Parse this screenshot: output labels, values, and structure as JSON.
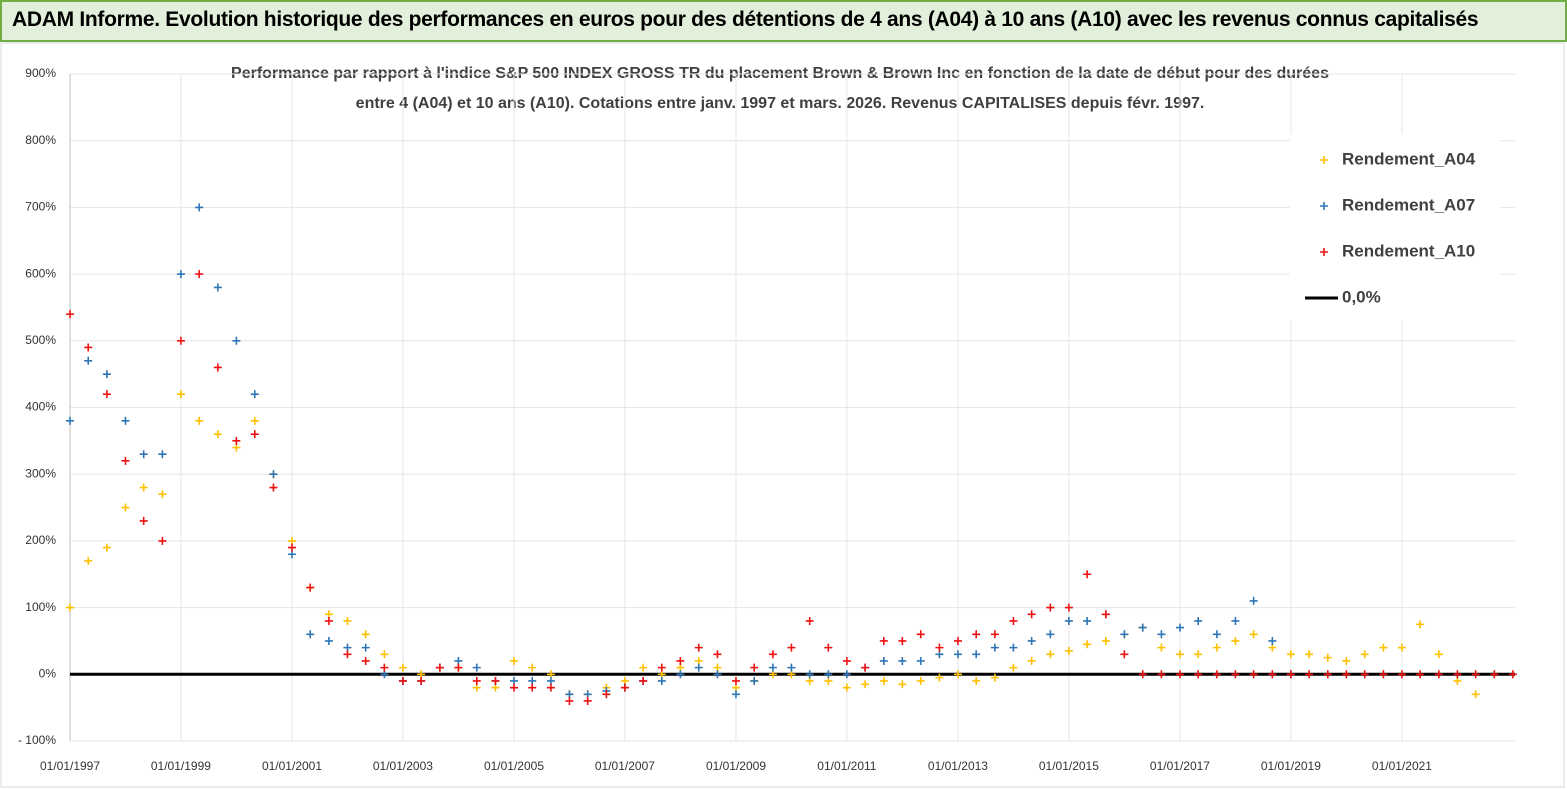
{
  "header": {
    "title": "ADAM Informe. Evolution historique des performances en euros pour des détentions de 4 ans (A04) à 10 ans (A10) avec les revenus connus capitalisés"
  },
  "chart_data": {
    "type": "scatter",
    "subtitle": [
      "Performance par rapport à l'indice S&P 500 INDEX GROSS TR  du placement Brown & Brown Inc en fonction de la date de début pour des durées",
      "entre 4 (A04) et 10 ans (A10). Cotations entre janv. 1997 et mars. 2026. Revenus CAPITALISES depuis févr. 1997."
    ],
    "x": [
      "1997-01-01",
      "1997-05-01",
      "1997-09-01",
      "1998-01-01",
      "1998-05-01",
      "1998-09-01",
      "1999-01-01",
      "1999-05-01",
      "1999-09-01",
      "2000-01-01",
      "2000-05-01",
      "2000-09-01",
      "2001-01-01",
      "2001-05-01",
      "2001-09-01",
      "2002-01-01",
      "2002-05-01",
      "2002-09-01",
      "2003-01-01",
      "2003-05-01",
      "2003-09-01",
      "2004-01-01",
      "2004-05-01",
      "2004-09-01",
      "2005-01-01",
      "2005-05-01",
      "2005-09-01",
      "2006-01-01",
      "2006-05-01",
      "2006-09-01",
      "2007-01-01",
      "2007-05-01",
      "2007-09-01",
      "2008-01-01",
      "2008-05-01",
      "2008-09-01",
      "2009-01-01",
      "2009-05-01",
      "2009-09-01",
      "2010-01-01",
      "2010-05-01",
      "2010-09-01",
      "2011-01-01",
      "2011-05-01",
      "2011-09-01",
      "2012-01-01",
      "2012-05-01",
      "2012-09-01",
      "2013-01-01",
      "2013-05-01",
      "2013-09-01",
      "2014-01-01",
      "2014-05-01",
      "2014-09-01",
      "2015-01-01",
      "2015-05-01",
      "2015-09-01",
      "2016-01-01",
      "2016-05-01",
      "2016-09-01",
      "2017-01-01",
      "2017-05-01",
      "2017-09-01",
      "2018-01-01",
      "2018-05-01",
      "2018-09-01",
      "2019-01-01",
      "2019-05-01",
      "2019-09-01",
      "2020-01-01",
      "2020-05-01",
      "2020-09-01",
      "2021-01-01",
      "2021-05-01",
      "2021-09-01",
      "2022-01-01",
      "2022-05-01",
      "2022-09-01",
      "2023-01-01"
    ],
    "series": [
      {
        "name": "Rendement_A04",
        "color": "#ffc000",
        "values": [
          100,
          170,
          190,
          250,
          280,
          270,
          420,
          380,
          360,
          340,
          380,
          300,
          200,
          130,
          90,
          80,
          60,
          30,
          10,
          0,
          10,
          10,
          -20,
          -20,
          20,
          10,
          0,
          -30,
          -30,
          -20,
          -10,
          10,
          0,
          10,
          20,
          10,
          -20,
          -10,
          0,
          0,
          -10,
          -10,
          -20,
          -15,
          -10,
          -15,
          -10,
          -5,
          0,
          -10,
          -5,
          10,
          20,
          30,
          35,
          45,
          50,
          60,
          70,
          40,
          30,
          30,
          40,
          50,
          60,
          40,
          30,
          30,
          25,
          20,
          30,
          40,
          40,
          75,
          30,
          -10,
          -30,
          null,
          null
        ]
      },
      {
        "name": "Rendement_A07",
        "color": "#2e75b6",
        "values": [
          380,
          470,
          450,
          380,
          330,
          330,
          600,
          700,
          580,
          500,
          420,
          300,
          180,
          60,
          50,
          40,
          40,
          0,
          -10,
          -10,
          10,
          20,
          10,
          -10,
          -10,
          -10,
          -10,
          -30,
          -30,
          -25,
          -20,
          -10,
          -10,
          0,
          10,
          0,
          -30,
          -10,
          10,
          10,
          0,
          0,
          0,
          10,
          20,
          20,
          20,
          30,
          30,
          30,
          40,
          40,
          50,
          60,
          80,
          80,
          90,
          60,
          70,
          60,
          70,
          80,
          60,
          80,
          110,
          50,
          0,
          null,
          null,
          null,
          null,
          null,
          null,
          null,
          null,
          null,
          null,
          null,
          null
        ]
      },
      {
        "name": "Rendement_A10",
        "color": "#ee1111",
        "values": [
          540,
          490,
          420,
          320,
          230,
          200,
          500,
          600,
          460,
          350,
          360,
          280,
          190,
          130,
          80,
          30,
          20,
          10,
          -10,
          -10,
          10,
          10,
          -10,
          -10,
          -20,
          -20,
          -20,
          -40,
          -40,
          -30,
          -20,
          -10,
          10,
          20,
          40,
          30,
          -10,
          10,
          30,
          40,
          80,
          40,
          20,
          10,
          50,
          50,
          60,
          40,
          50,
          60,
          60,
          80,
          90,
          100,
          100,
          150,
          90,
          30,
          0,
          0,
          0,
          0,
          0,
          0,
          0,
          0,
          0,
          0,
          0,
          0,
          0,
          0,
          0,
          0,
          0,
          0,
          0,
          0,
          0
        ]
      }
    ],
    "reference_line": {
      "name": "0,0%",
      "value": 0,
      "color": "#000000"
    },
    "xlim": [
      "1997-01-01",
      "2023-01-15"
    ],
    "xticks": [
      {
        "value": "1997-01-01",
        "label": "01/01/1997"
      },
      {
        "value": "1999-01-01",
        "label": "01/01/1999"
      },
      {
        "value": "2001-01-01",
        "label": "01/01/2001"
      },
      {
        "value": "2003-01-01",
        "label": "01/01/2003"
      },
      {
        "value": "2005-01-01",
        "label": "01/01/2005"
      },
      {
        "value": "2007-01-01",
        "label": "01/01/2007"
      },
      {
        "value": "2009-01-01",
        "label": "01/01/2009"
      },
      {
        "value": "2011-01-01",
        "label": "01/01/2011"
      },
      {
        "value": "2013-01-01",
        "label": "01/01/2013"
      },
      {
        "value": "2015-01-01",
        "label": "01/01/2015"
      },
      {
        "value": "2017-01-01",
        "label": "01/01/2017"
      },
      {
        "value": "2019-01-01",
        "label": "01/01/2019"
      },
      {
        "value": "2021-01-01",
        "label": "01/01/2021"
      }
    ],
    "ylim": [
      -100,
      900
    ],
    "yticks": [
      {
        "value": -100,
        "label": "- 100%"
      },
      {
        "value": 0,
        "label": "0%"
      },
      {
        "value": 100,
        "label": "100%"
      },
      {
        "value": 200,
        "label": "200%"
      },
      {
        "value": 300,
        "label": "300%"
      },
      {
        "value": 400,
        "label": "400%"
      },
      {
        "value": 500,
        "label": "500%"
      },
      {
        "value": 600,
        "label": "600%"
      },
      {
        "value": 700,
        "label": "700%"
      },
      {
        "value": 800,
        "label": "800%"
      },
      {
        "value": 900,
        "label": "900%"
      }
    ],
    "grid": true,
    "legend": "right"
  }
}
